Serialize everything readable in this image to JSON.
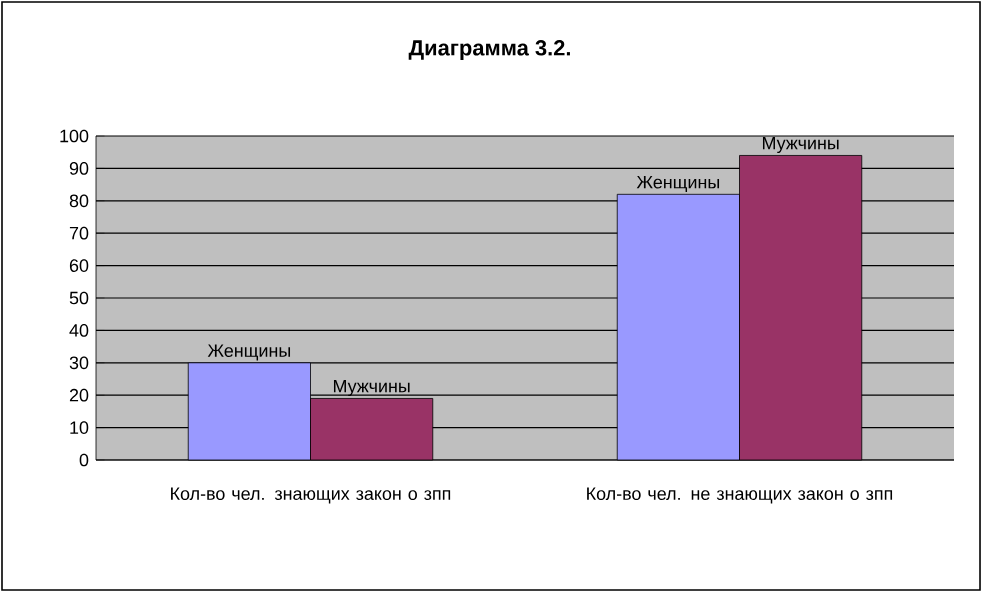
{
  "chart_data": {
    "type": "bar",
    "title": "Диаграмма 3.2.",
    "categories": [
      "Кол-во чел. знающих закон о зпп",
      "Кол-во чел. не знающих закон о зпп"
    ],
    "series": [
      {
        "name": "Женщины",
        "color": "#9999ff",
        "values": [
          30,
          82
        ]
      },
      {
        "name": "Мужчины",
        "color": "#993366",
        "values": [
          19,
          94
        ]
      }
    ],
    "ylim": [
      0,
      100
    ],
    "yticks": [
      0,
      10,
      20,
      30,
      40,
      50,
      60,
      70,
      80,
      90,
      100
    ],
    "grid": "y",
    "legend": false
  }
}
